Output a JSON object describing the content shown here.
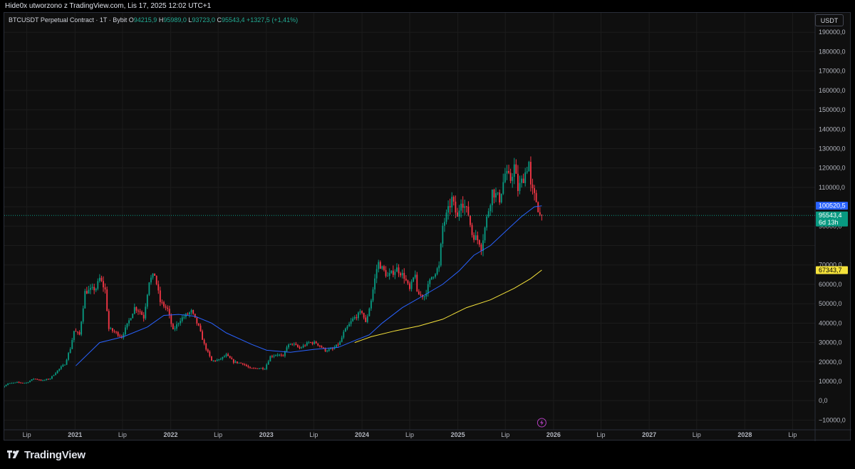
{
  "header": {
    "attribution": "Hide0x utworzono z TradingView.com, Lis 17, 2025 12:02 UTC+1"
  },
  "legend": {
    "symbol": "BTCUSDT Perpetual Contract · 1T · Bybit",
    "open_label": "O",
    "open": "94215,9",
    "high_label": "H",
    "high": "95989,0",
    "low_label": "L",
    "low": "93723,0",
    "close_label": "C",
    "close": "95543,4",
    "change": "+1327,5 (+1,41%)"
  },
  "currency_button": "USDT",
  "footer": {
    "brand": "TradingView"
  },
  "colors": {
    "background": "#0f0f0f",
    "grid": "#1c1c1c",
    "up": "#089981",
    "down": "#f23645",
    "ma_blue": "#2962ff",
    "ma_yellow": "#f5e23b",
    "price_line": "#089981"
  },
  "icons": {
    "brand_logo": "tradingview-logo-icon",
    "news": "lightning-icon"
  },
  "chart_data": {
    "type": "candlestick",
    "interval": "1W",
    "ylim": [
      -15000,
      200000
    ],
    "y_ticks": [
      {
        "v": 190000,
        "label": "190000,0"
      },
      {
        "v": 180000,
        "label": "180000,0"
      },
      {
        "v": 170000,
        "label": "170000,0"
      },
      {
        "v": 160000,
        "label": "160000,0"
      },
      {
        "v": 150000,
        "label": "150000,0"
      },
      {
        "v": 140000,
        "label": "140000,0"
      },
      {
        "v": 130000,
        "label": "130000,0"
      },
      {
        "v": 120000,
        "label": "120000,0"
      },
      {
        "v": 110000,
        "label": "110000,0"
      },
      {
        "v": 90000,
        "label": "90000,0"
      },
      {
        "v": 70000,
        "label": "70000,0"
      },
      {
        "v": 60000,
        "label": "60000,0"
      },
      {
        "v": 50000,
        "label": "50000,0"
      },
      {
        "v": 40000,
        "label": "40000,0"
      },
      {
        "v": 30000,
        "label": "30000,0"
      },
      {
        "v": 20000,
        "label": "20000,0"
      },
      {
        "v": 10000,
        "label": "10000,0"
      },
      {
        "v": 0,
        "label": "0,0"
      },
      {
        "v": -10000,
        "label": "−10000,0"
      }
    ],
    "xlim": [
      "2020-04-06",
      "2028-09-25"
    ],
    "x_ticks": [
      {
        "date": "2020-07-01",
        "label": "Lip",
        "bold": false
      },
      {
        "date": "2021-01-01",
        "label": "2021",
        "bold": true
      },
      {
        "date": "2021-07-01",
        "label": "Lip",
        "bold": false
      },
      {
        "date": "2022-01-01",
        "label": "2022",
        "bold": true
      },
      {
        "date": "2022-07-01",
        "label": "Lip",
        "bold": false
      },
      {
        "date": "2023-01-01",
        "label": "2023",
        "bold": true
      },
      {
        "date": "2023-07-01",
        "label": "Lip",
        "bold": false
      },
      {
        "date": "2024-01-01",
        "label": "2024",
        "bold": true
      },
      {
        "date": "2024-07-01",
        "label": "Lip",
        "bold": false
      },
      {
        "date": "2025-01-01",
        "label": "2025",
        "bold": true
      },
      {
        "date": "2025-07-01",
        "label": "Lip",
        "bold": false
      },
      {
        "date": "2026-01-01",
        "label": "2026",
        "bold": true
      },
      {
        "date": "2026-07-01",
        "label": "Lip",
        "bold": false
      },
      {
        "date": "2027-01-01",
        "label": "2027",
        "bold": true
      },
      {
        "date": "2027-07-01",
        "label": "Lip",
        "bold": false
      },
      {
        "date": "2028-01-01",
        "label": "2028",
        "bold": true
      },
      {
        "date": "2028-07-01",
        "label": "Lip",
        "bold": false
      }
    ],
    "price_path": [
      [
        "2020-03-30",
        6500
      ],
      [
        "2020-04-27",
        8800
      ],
      [
        "2020-06-01",
        9400
      ],
      [
        "2020-07-06",
        9200
      ],
      [
        "2020-08-03",
        11400
      ],
      [
        "2020-09-07",
        10400
      ],
      [
        "2020-10-05",
        11500
      ],
      [
        "2020-11-02",
        15500
      ],
      [
        "2020-11-30",
        19000
      ],
      [
        "2020-12-21",
        27000
      ],
      [
        "2021-01-04",
        36000
      ],
      [
        "2021-01-25",
        34000
      ],
      [
        "2021-02-15",
        56000
      ],
      [
        "2021-03-08",
        57000
      ],
      [
        "2021-03-29",
        58000
      ],
      [
        "2021-04-12",
        63000
      ],
      [
        "2021-05-03",
        57000
      ],
      [
        "2021-05-17",
        37000
      ],
      [
        "2021-06-14",
        35000
      ],
      [
        "2021-07-05",
        33000
      ],
      [
        "2021-07-26",
        39000
      ],
      [
        "2021-08-23",
        48000
      ],
      [
        "2021-09-13",
        46000
      ],
      [
        "2021-09-27",
        43000
      ],
      [
        "2021-10-18",
        62000
      ],
      [
        "2021-11-08",
        65000
      ],
      [
        "2021-11-29",
        51000
      ],
      [
        "2021-12-27",
        47000
      ],
      [
        "2022-01-17",
        36000
      ],
      [
        "2022-02-14",
        42000
      ],
      [
        "2022-03-28",
        46000
      ],
      [
        "2022-04-25",
        38000
      ],
      [
        "2022-05-16",
        29000
      ],
      [
        "2022-06-13",
        20500
      ],
      [
        "2022-07-11",
        21000
      ],
      [
        "2022-08-08",
        23500
      ],
      [
        "2022-09-05",
        20000
      ],
      [
        "2022-10-10",
        19200
      ],
      [
        "2022-11-07",
        16500
      ],
      [
        "2022-12-12",
        16800
      ],
      [
        "2023-01-02",
        16700
      ],
      [
        "2023-01-23",
        22800
      ],
      [
        "2023-02-20",
        24000
      ],
      [
        "2023-03-13",
        22500
      ],
      [
        "2023-03-27",
        28000
      ],
      [
        "2023-04-17",
        29500
      ],
      [
        "2023-05-15",
        27000
      ],
      [
        "2023-06-19",
        30000
      ],
      [
        "2023-07-17",
        29800
      ],
      [
        "2023-08-21",
        26000
      ],
      [
        "2023-09-18",
        26500
      ],
      [
        "2023-10-16",
        30000
      ],
      [
        "2023-10-30",
        35000
      ],
      [
        "2023-12-04",
        42000
      ],
      [
        "2024-01-08",
        46000
      ],
      [
        "2024-01-22",
        40000
      ],
      [
        "2024-02-12",
        52000
      ],
      [
        "2024-03-04",
        68000
      ],
      [
        "2024-03-11",
        71000
      ],
      [
        "2024-04-15",
        64000
      ],
      [
        "2024-05-20",
        68000
      ],
      [
        "2024-06-17",
        64000
      ],
      [
        "2024-07-08",
        57000
      ],
      [
        "2024-07-29",
        66000
      ],
      [
        "2024-08-05",
        55000
      ],
      [
        "2024-09-02",
        54000
      ],
      [
        "2024-09-30",
        64000
      ],
      [
        "2024-10-28",
        69000
      ],
      [
        "2024-11-11",
        90000
      ],
      [
        "2024-12-02",
        98000
      ],
      [
        "2024-12-16",
        104000
      ],
      [
        "2025-01-06",
        94000
      ],
      [
        "2025-01-20",
        104000
      ],
      [
        "2025-02-17",
        96000
      ],
      [
        "2025-03-03",
        86000
      ],
      [
        "2025-03-31",
        82000
      ],
      [
        "2025-04-07",
        79000
      ],
      [
        "2025-04-28",
        94000
      ],
      [
        "2025-05-19",
        108000
      ],
      [
        "2025-06-16",
        104000
      ],
      [
        "2025-07-07",
        117000
      ],
      [
        "2025-07-28",
        114000
      ],
      [
        "2025-08-11",
        121000
      ],
      [
        "2025-08-25",
        109000
      ],
      [
        "2025-09-15",
        115000
      ],
      [
        "2025-10-06",
        123000
      ],
      [
        "2025-10-13",
        110000
      ],
      [
        "2025-11-03",
        103000
      ],
      [
        "2025-11-17",
        95543
      ]
    ],
    "ma_blue": [
      [
        "2021-01-04",
        18000
      ],
      [
        "2021-04-05",
        30000
      ],
      [
        "2021-07-05",
        33000
      ],
      [
        "2021-10-04",
        38000
      ],
      [
        "2021-12-06",
        44000
      ],
      [
        "2022-01-31",
        44500
      ],
      [
        "2022-04-04",
        43500
      ],
      [
        "2022-06-06",
        40000
      ],
      [
        "2022-08-01",
        35000
      ],
      [
        "2022-11-07",
        29000
      ],
      [
        "2023-01-02",
        26000
      ],
      [
        "2023-04-03",
        25000
      ],
      [
        "2023-07-03",
        26500
      ],
      [
        "2023-10-02",
        27500
      ],
      [
        "2023-12-04",
        31000
      ],
      [
        "2024-01-29",
        34000
      ],
      [
        "2024-03-18",
        40000
      ],
      [
        "2024-06-03",
        48000
      ],
      [
        "2024-09-02",
        55000
      ],
      [
        "2024-11-04",
        60000
      ],
      [
        "2025-01-06",
        67000
      ],
      [
        "2025-03-03",
        75000
      ],
      [
        "2025-05-05",
        80000
      ],
      [
        "2025-07-07",
        88000
      ],
      [
        "2025-09-01",
        95000
      ],
      [
        "2025-10-20",
        100000
      ],
      [
        "2025-11-17",
        100520.5
      ]
    ],
    "ma_yellow": [
      [
        "2023-12-04",
        30000
      ],
      [
        "2024-02-05",
        33000
      ],
      [
        "2024-05-06",
        36000
      ],
      [
        "2024-08-05",
        38500
      ],
      [
        "2024-11-04",
        42000
      ],
      [
        "2025-02-03",
        48000
      ],
      [
        "2025-05-05",
        52000
      ],
      [
        "2025-08-04",
        58000
      ],
      [
        "2025-10-06",
        63000
      ],
      [
        "2025-11-17",
        67343.7
      ]
    ],
    "price_tags": [
      {
        "name": "ma-blue-value",
        "value": 100520.5,
        "label": "100520,5",
        "bg": "#2962ff",
        "fg": "#ffffff"
      },
      {
        "name": "last-price",
        "value": 95543.4,
        "label": "95543,4",
        "sub": "6d 13h",
        "bg": "#089981",
        "fg": "#ffffff"
      },
      {
        "name": "ma-yellow-value",
        "value": 67343.7,
        "label": "67343,7",
        "bg": "#f5e23b",
        "fg": "#000000"
      }
    ]
  }
}
